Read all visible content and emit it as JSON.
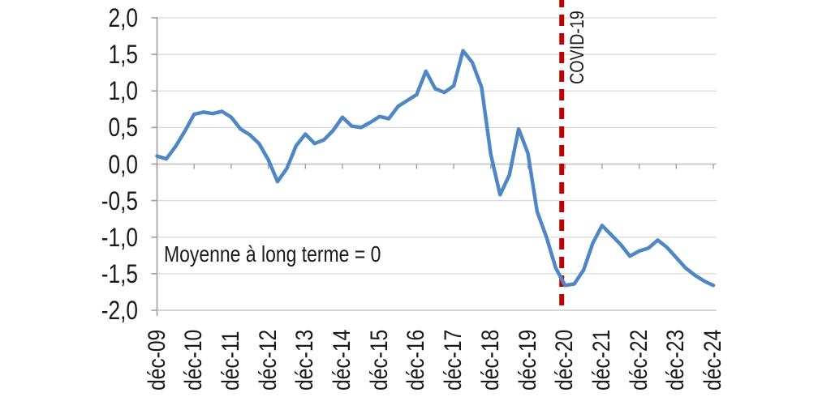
{
  "page": {
    "background": "#ffffff"
  },
  "chart_data": {
    "type": "line",
    "title": "",
    "xlabel": "",
    "ylabel": "",
    "ylim": [
      -2.0,
      2.0
    ],
    "grid": true,
    "legend": false,
    "x_frequency": "quarterly",
    "x_tick_labels": [
      "déc-09",
      "déc-10",
      "déc-11",
      "déc-12",
      "déc-13",
      "déc-14",
      "déc-15",
      "déc-16",
      "déc-17",
      "déc-18",
      "déc-19",
      "déc-20",
      "déc-21",
      "déc-22",
      "déc-23",
      "déc-24"
    ],
    "y_ticks": [
      {
        "value": 2.0,
        "label": "2,0"
      },
      {
        "value": 1.5,
        "label": "1,5"
      },
      {
        "value": 1.0,
        "label": "1,0"
      },
      {
        "value": 0.5,
        "label": "0,5"
      },
      {
        "value": 0.0,
        "label": "0,0"
      },
      {
        "value": -0.5,
        "label": "-0,5"
      },
      {
        "value": -1.0,
        "label": "-1,0"
      },
      {
        "value": -1.5,
        "label": "-1,5"
      },
      {
        "value": -2.0,
        "label": "-2,0"
      }
    ],
    "series": [
      {
        "color": "#4f86c6",
        "values": [
          0.11,
          0.07,
          0.24,
          0.45,
          0.68,
          0.71,
          0.69,
          0.72,
          0.64,
          0.48,
          0.4,
          0.28,
          0.06,
          -0.24,
          -0.06,
          0.25,
          0.41,
          0.28,
          0.33,
          0.46,
          0.64,
          0.52,
          0.5,
          0.57,
          0.65,
          0.62,
          0.79,
          0.87,
          0.95,
          1.27,
          1.03,
          0.98,
          1.07,
          1.55,
          1.39,
          1.05,
          0.13,
          -0.42,
          -0.15,
          0.48,
          0.15,
          -0.65,
          -1.0,
          -1.42,
          -1.66,
          -1.64,
          -1.45,
          -1.08,
          -0.84,
          -0.97,
          -1.1,
          -1.26,
          -1.19,
          -1.15,
          -1.04,
          -1.14,
          -1.28,
          -1.42,
          -1.52,
          -1.6,
          -1.66
        ]
      }
    ],
    "annotations": {
      "mean_label": "Moyenne à long terme = 0",
      "covid_label": "COVID-19"
    },
    "covid_vline": {
      "at_x_label": "déc-20",
      "style": "dashed",
      "color": "#c00000"
    },
    "colors": {
      "line": "#4f86c6",
      "vline": "#c00000",
      "grid": "#d9d9d9",
      "zero_axis": "#bdbdbd",
      "axis": "#9e9e9e",
      "text": "#1a1a1a"
    }
  }
}
